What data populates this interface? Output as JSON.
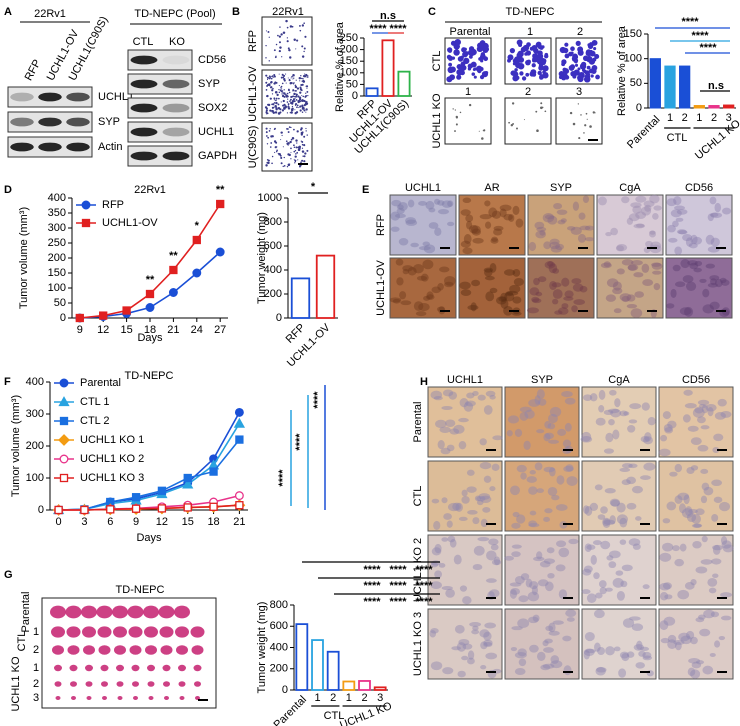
{
  "panel_labels": [
    "A",
    "B",
    "C",
    "D",
    "E",
    "F",
    "G",
    "H"
  ],
  "blot_A1": {
    "cell_line": "22Rv1",
    "lanes": [
      "RFP",
      "UCHL1-OV",
      "UCHL1(C90S)"
    ],
    "lane_colors": [
      "#1a4fd6",
      "#e02020",
      "#2db34a"
    ],
    "bands": [
      "UCHL1",
      "SYP",
      "Actin"
    ]
  },
  "blot_A2": {
    "title": "TD-NEPC (Pool)",
    "lanes": [
      "CTL",
      "KO"
    ],
    "bands": [
      "CD56",
      "SYP",
      "SOX2",
      "UCHL1",
      "GAPDH"
    ]
  },
  "colony_B": {
    "cell_line": "22Rv1",
    "rows": [
      "RFP",
      "UCHL1-OV",
      "U(C90S)"
    ],
    "row_colors": [
      "#1a4fd6",
      "#e02020",
      "#2db34a"
    ]
  },
  "colony_C": {
    "title": "TD-NEPC",
    "top": [
      "Parental",
      "1",
      "2"
    ],
    "top_colors": [
      "#1a4fd6",
      "#29a3e0",
      "#1a4fd6"
    ],
    "bottom": [
      "1",
      "2",
      "3"
    ],
    "bottom_colors": [
      "#f39c12",
      "#e8338a",
      "#e02020"
    ],
    "rows": [
      "CTL",
      "UCHL1 KO"
    ]
  },
  "ihc_E": {
    "columns": [
      "UCHL1",
      "AR",
      "SYP",
      "CgA",
      "CD56"
    ],
    "rows": [
      "RFP",
      "UCHL1-OV"
    ],
    "row_colors": [
      "#1a4fd6",
      "#e02020"
    ]
  },
  "tumors_G": {
    "title": "TD-NEPC",
    "rows": [
      "Parental",
      "1",
      "2",
      "1",
      "2",
      "3"
    ],
    "row_colors": [
      "#1a4fd6",
      "#1a4fd6",
      "#1a4fd6",
      "#f39c12",
      "#e8338a",
      "#e02020"
    ],
    "groups": [
      "CTL",
      "UCHL1 KO"
    ]
  },
  "ihc_H": {
    "columns": [
      "UCHL1",
      "SYP",
      "CgA",
      "CD56"
    ],
    "rows": [
      "Parental",
      "CTL",
      "UCHL1 KO 2",
      "UCHL1 KO 3"
    ],
    "row_colors": [
      "#1a4fd6",
      "#1a4fd6",
      "#e8338a",
      "#e02020"
    ]
  },
  "chart_data": [
    {
      "type": "bar",
      "ylabel": "Relative % of area",
      "categories": [
        "RFP",
        "UCHL1-OV",
        "UCHL1(C90S)"
      ],
      "values": [
        33,
        240,
        105
      ],
      "colors": [
        "#1a4fd6",
        "#e02020",
        "#2db34a"
      ],
      "bar_style": "outline",
      "ylim": [
        0,
        250
      ],
      "yticks": [
        0,
        50,
        100,
        150,
        200,
        250
      ],
      "annotations": [
        "n.s",
        "****",
        "****"
      ],
      "annotation_colors": [
        "#1a4fd6",
        "#1a4fd6",
        "#e02020"
      ]
    },
    {
      "type": "bar",
      "ylabel": "Relative % of area",
      "categories": [
        "Parental",
        "1",
        "2",
        "1",
        "2",
        "3"
      ],
      "values": [
        100,
        85,
        85,
        5,
        5,
        6
      ],
      "colors": [
        "#1a4fd6",
        "#29a3e0",
        "#1a4fd6",
        "#f39c12",
        "#e8338a",
        "#e02020"
      ],
      "bar_style": "filled",
      "groups": [
        "CTL",
        "UCHL1 KO"
      ],
      "ylim": [
        0,
        150
      ],
      "yticks": [
        0,
        50,
        100,
        150
      ],
      "annotations": [
        "****",
        "****",
        "****",
        "n.s"
      ],
      "annotation_colors": [
        "#1a4fd6",
        "#29a3e0",
        "#1a4fd6",
        "#000000"
      ]
    },
    {
      "type": "line",
      "title": "22Rv1",
      "xlabel": "Days",
      "ylabel": "Tumor volume (mm³)",
      "x": [
        9,
        12,
        15,
        18,
        21,
        24,
        27
      ],
      "xlim": [
        8,
        28
      ],
      "xticks": [
        9,
        12,
        15,
        18,
        21,
        24,
        27
      ],
      "ylim": [
        0,
        400
      ],
      "yticks": [
        0,
        50,
        100,
        150,
        200,
        250,
        300,
        350,
        400
      ],
      "series": [
        {
          "name": "RFP",
          "color": "#1a4fd6",
          "marker": "circle",
          "values": [
            0,
            5,
            15,
            35,
            85,
            150,
            220
          ]
        },
        {
          "name": "UCHL1-OV",
          "color": "#e02020",
          "marker": "square",
          "values": [
            0,
            8,
            25,
            80,
            160,
            260,
            380
          ]
        }
      ],
      "annotations": [
        "**",
        "**",
        "*",
        "**"
      ],
      "annotation_colors": [
        "#000000",
        "#000000",
        "#000000",
        "#000000"
      ]
    },
    {
      "type": "bar",
      "ylabel": "Tumor weight (mg)",
      "categories": [
        "RFP",
        "UCHL1-OV"
      ],
      "values": [
        330,
        520
      ],
      "colors": [
        "#1a4fd6",
        "#e02020"
      ],
      "bar_style": "outline",
      "ylim": [
        0,
        1000
      ],
      "yticks": [
        0,
        200,
        400,
        600,
        800,
        1000
      ],
      "annotations": [
        "*"
      ],
      "annotation_colors": [
        "#000000"
      ]
    },
    {
      "type": "line",
      "title": "TD-NEPC",
      "xlabel": "Days",
      "ylabel": "Tumor volume (mm³)",
      "x": [
        0,
        3,
        6,
        9,
        12,
        15,
        18,
        21
      ],
      "xlim": [
        -1,
        22
      ],
      "xticks": [
        0,
        3,
        6,
        9,
        12,
        15,
        18,
        21
      ],
      "ylim": [
        0,
        400
      ],
      "yticks": [
        0,
        100,
        200,
        300,
        400
      ],
      "series": [
        {
          "name": "Parental",
          "color": "#1a4fd6",
          "marker": "circle",
          "values": [
            0,
            2,
            25,
            35,
            55,
            85,
            160,
            305
          ]
        },
        {
          "name": "CTL 1",
          "color": "#29a3e0",
          "marker": "triangle",
          "values": [
            0,
            2,
            20,
            30,
            50,
            80,
            140,
            270
          ]
        },
        {
          "name": "CTL 2",
          "color": "#1a6fe0",
          "marker": "square",
          "values": [
            0,
            2,
            25,
            40,
            60,
            100,
            120,
            220
          ]
        },
        {
          "name": "UCHL1 KO 1",
          "color": "#f39c12",
          "marker": "diamond",
          "values": [
            0,
            0,
            2,
            3,
            5,
            8,
            10,
            15
          ]
        },
        {
          "name": "UCHL1 KO 2",
          "color": "#e8338a",
          "marker": "open-circle",
          "values": [
            0,
            0,
            3,
            5,
            10,
            15,
            25,
            45
          ]
        },
        {
          "name": "UCHL1 KO 3",
          "color": "#e02020",
          "marker": "open-square",
          "values": [
            0,
            0,
            2,
            4,
            5,
            8,
            10,
            15
          ]
        }
      ],
      "annotations": [
        "****",
        "****",
        "****"
      ],
      "annotation_colors": [
        "#29a3e0",
        "#29a3e0",
        "#1a4fd6"
      ]
    },
    {
      "type": "bar",
      "ylabel": "Tumor weight (mg)",
      "categories": [
        "Parental",
        "1",
        "2",
        "1",
        "2",
        "3"
      ],
      "values": [
        620,
        470,
        360,
        80,
        85,
        25
      ],
      "colors": [
        "#1a4fd6",
        "#29a3e0",
        "#1a4fd6",
        "#f39c12",
        "#e8338a",
        "#e02020"
      ],
      "bar_style": "outline",
      "groups": [
        "CTL",
        "UCHL1 KO"
      ],
      "ylim": [
        0,
        800
      ],
      "yticks": [
        0,
        200,
        400,
        600,
        800
      ],
      "annotations": [
        "****",
        "****",
        "****",
        "****",
        "****",
        "****",
        "****",
        "****",
        "****"
      ],
      "annotation_colors": [
        "#000000",
        "#000000",
        "#000000",
        "#000000",
        "#000000",
        "#000000",
        "#000000",
        "#000000",
        "#000000"
      ]
    }
  ]
}
